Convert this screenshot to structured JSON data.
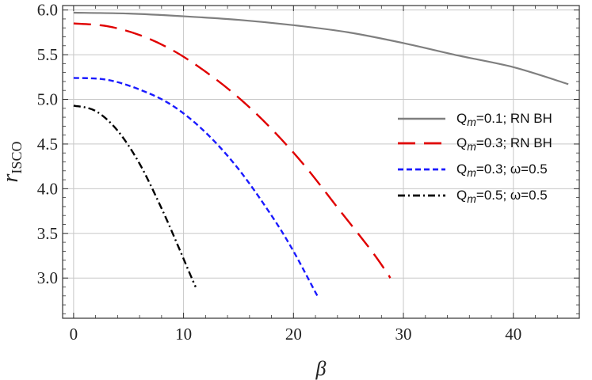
{
  "chart_data": {
    "type": "line",
    "title": "",
    "xlabel": "β",
    "ylabel_main": "r",
    "ylabel_sub": "ISCO",
    "xlim": [
      -1,
      46
    ],
    "ylim": [
      2.55,
      6.05
    ],
    "x_ticks": [
      0,
      10,
      20,
      30,
      40
    ],
    "x_tick_labels": [
      "0",
      "10",
      "20",
      "30",
      "40"
    ],
    "y_ticks": [
      3.0,
      3.5,
      4.0,
      4.5,
      5.0,
      5.5,
      6.0
    ],
    "y_tick_labels": [
      "3.0",
      "3.5",
      "4.0",
      "4.5",
      "5.0",
      "5.5",
      "6.0"
    ],
    "grid": true,
    "legend_position": "right",
    "series": [
      {
        "name": "Qm=0.1; RN BH",
        "label_main": "Q",
        "label_sub": "m",
        "label_rest": "=0.1; RN BH",
        "color": "#7f7f7f",
        "style": "solid",
        "x": [
          0,
          5,
          10,
          15,
          20,
          25,
          30,
          35,
          40,
          45
        ],
        "y": [
          5.97,
          5.96,
          5.93,
          5.89,
          5.83,
          5.75,
          5.63,
          5.49,
          5.36,
          5.17
        ]
      },
      {
        "name": "Qm=0.3; RN BH",
        "label_main": "Q",
        "label_sub": "m",
        "label_rest": "=0.3; RN BH",
        "color": "#e00000",
        "style": "dashed-long",
        "x": [
          0,
          3,
          6,
          9,
          12,
          15,
          18,
          21,
          24,
          27,
          28.5,
          28.8
        ],
        "y": [
          5.85,
          5.82,
          5.72,
          5.55,
          5.31,
          5.02,
          4.67,
          4.26,
          3.79,
          3.32,
          3.06,
          3.0
        ]
      },
      {
        "name": "Qm=0.3; ω=0.5",
        "label_main": "Q",
        "label_sub": "m",
        "label_rest": "=0.3; ω=0.5",
        "color": "#1a1aff",
        "style": "dashed-short",
        "x": [
          0,
          3,
          6,
          9,
          12,
          15,
          18,
          20,
          22,
          22.3
        ],
        "y": [
          5.24,
          5.22,
          5.11,
          4.93,
          4.63,
          4.22,
          3.7,
          3.3,
          2.84,
          2.78
        ]
      },
      {
        "name": "Qm=0.5; ω=0.5",
        "label_main": "Q",
        "label_sub": "m",
        "label_rest": "=0.5; ω=0.5",
        "color": "#000000",
        "style": "dash-dot",
        "x": [
          0,
          2,
          4,
          6,
          8,
          9.5,
          10.5,
          11.1
        ],
        "y": [
          4.93,
          4.87,
          4.65,
          4.28,
          3.78,
          3.36,
          3.07,
          2.9
        ]
      }
    ]
  }
}
